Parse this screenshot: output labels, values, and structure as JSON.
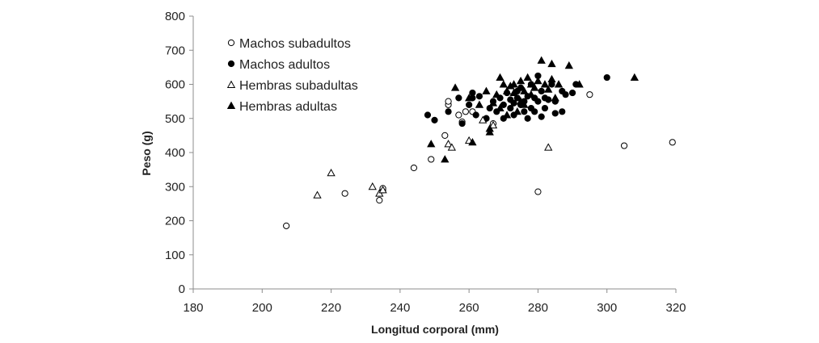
{
  "chart_data": {
    "type": "scatter",
    "xlabel": "Longitud corporal (mm)",
    "ylabel": "Peso (g)",
    "xlim": [
      180,
      320
    ],
    "ylim": [
      0,
      800
    ],
    "xticks": [
      180,
      200,
      220,
      240,
      260,
      280,
      300,
      320
    ],
    "yticks": [
      0,
      100,
      200,
      300,
      400,
      500,
      600,
      700,
      800
    ],
    "grid": false,
    "legend_position": "top-left",
    "series": [
      {
        "name": "Machos subadultos",
        "marker": "circle-open",
        "points": [
          [
            207,
            185
          ],
          [
            224,
            280
          ],
          [
            234,
            260
          ],
          [
            235,
            290
          ],
          [
            235,
            295
          ],
          [
            244,
            355
          ],
          [
            249,
            380
          ],
          [
            253,
            450
          ],
          [
            254,
            540
          ],
          [
            254,
            550
          ],
          [
            257,
            510
          ],
          [
            258,
            490
          ],
          [
            259,
            520
          ],
          [
            261,
            520
          ],
          [
            265,
            500
          ],
          [
            267,
            485
          ],
          [
            280,
            285
          ],
          [
            295,
            570
          ],
          [
            305,
            420
          ],
          [
            319,
            430
          ]
        ]
      },
      {
        "name": "Machos adultos",
        "marker": "circle-filled",
        "points": [
          [
            248,
            510
          ],
          [
            250,
            495
          ],
          [
            254,
            520
          ],
          [
            257,
            560
          ],
          [
            258,
            485
          ],
          [
            260,
            540
          ],
          [
            261,
            575
          ],
          [
            261,
            560
          ],
          [
            262,
            510
          ],
          [
            263,
            565
          ],
          [
            265,
            500
          ],
          [
            266,
            530
          ],
          [
            267,
            550
          ],
          [
            268,
            520
          ],
          [
            269,
            560
          ],
          [
            270,
            540
          ],
          [
            270,
            500
          ],
          [
            271,
            575
          ],
          [
            272,
            530
          ],
          [
            272,
            555
          ],
          [
            273,
            545
          ],
          [
            273,
            510
          ],
          [
            274,
            580
          ],
          [
            274,
            560
          ],
          [
            275,
            540
          ],
          [
            275,
            590
          ],
          [
            276,
            550
          ],
          [
            276,
            520
          ],
          [
            277,
            500
          ],
          [
            277,
            565
          ],
          [
            278,
            530
          ],
          [
            278,
            600
          ],
          [
            279,
            520
          ],
          [
            279,
            560
          ],
          [
            280,
            625
          ],
          [
            280,
            550
          ],
          [
            281,
            580
          ],
          [
            281,
            505
          ],
          [
            282,
            560
          ],
          [
            282,
            530
          ],
          [
            283,
            555
          ],
          [
            284,
            600
          ],
          [
            285,
            515
          ],
          [
            285,
            550
          ],
          [
            287,
            580
          ],
          [
            287,
            520
          ],
          [
            288,
            570
          ],
          [
            290,
            575
          ],
          [
            291,
            600
          ],
          [
            300,
            620
          ]
        ]
      },
      {
        "name": "Hembras subadultas",
        "marker": "triangle-open",
        "points": [
          [
            216,
            275
          ],
          [
            220,
            340
          ],
          [
            232,
            300
          ],
          [
            234,
            280
          ],
          [
            235,
            290
          ],
          [
            254,
            425
          ],
          [
            255,
            415
          ],
          [
            260,
            435
          ],
          [
            264,
            495
          ],
          [
            267,
            480
          ],
          [
            283,
            415
          ]
        ]
      },
      {
        "name": "Hembras adultas",
        "marker": "triangle-filled",
        "points": [
          [
            249,
            425
          ],
          [
            253,
            380
          ],
          [
            256,
            590
          ],
          [
            260,
            560
          ],
          [
            261,
            430
          ],
          [
            263,
            540
          ],
          [
            265,
            580
          ],
          [
            266,
            460
          ],
          [
            266,
            470
          ],
          [
            267,
            545
          ],
          [
            268,
            570
          ],
          [
            269,
            530
          ],
          [
            269,
            620
          ],
          [
            270,
            600
          ],
          [
            271,
            510
          ],
          [
            271,
            580
          ],
          [
            272,
            595
          ],
          [
            273,
            575
          ],
          [
            273,
            600
          ],
          [
            274,
            520
          ],
          [
            275,
            610
          ],
          [
            275,
            550
          ],
          [
            276,
            580
          ],
          [
            276,
            540
          ],
          [
            277,
            620
          ],
          [
            278,
            600
          ],
          [
            278,
            570
          ],
          [
            279,
            590
          ],
          [
            280,
            610
          ],
          [
            281,
            670
          ],
          [
            282,
            600
          ],
          [
            283,
            585
          ],
          [
            284,
            660
          ],
          [
            284,
            615
          ],
          [
            285,
            560
          ],
          [
            286,
            600
          ],
          [
            289,
            655
          ],
          [
            292,
            600
          ],
          [
            308,
            620
          ]
        ]
      }
    ]
  }
}
